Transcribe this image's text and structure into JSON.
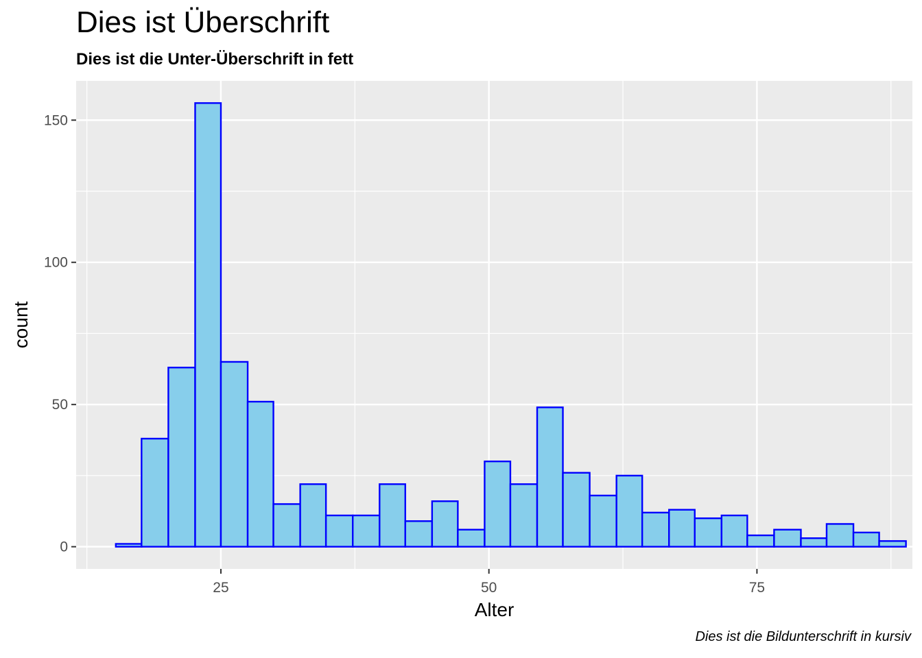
{
  "title": "Dies ist Überschrift",
  "subtitle": "Dies ist die Unter-Überschrift in fett",
  "caption": "Dies ist die Bildunterschrift in kursiv",
  "colors": {
    "panel_background": "#EBEBEB",
    "grid": "#FFFFFF",
    "bar_fill": "#87CEEB",
    "bar_outline": "#0000FF",
    "tick_text": "#4D4D4D"
  },
  "chart_data": {
    "type": "bar",
    "histogram": true,
    "xlabel": "Alter",
    "ylabel": "count",
    "xlim": [
      11.5,
      89.5
    ],
    "ylim": [
      -7.8,
      163.8
    ],
    "x_ticks": [
      25,
      50,
      75
    ],
    "x_tick_labels": [
      "25",
      "50",
      "75"
    ],
    "y_ticks": [
      0,
      50,
      100,
      150
    ],
    "y_tick_labels": [
      "0",
      "50",
      "100",
      "150"
    ],
    "grid": true,
    "bins": [
      {
        "x_start": 15.2,
        "x_end": 17.6,
        "count": 1
      },
      {
        "x_start": 17.6,
        "x_end": 20.1,
        "count": 38
      },
      {
        "x_start": 20.1,
        "x_end": 22.6,
        "count": 63
      },
      {
        "x_start": 22.6,
        "x_end": 25.0,
        "count": 156
      },
      {
        "x_start": 25.0,
        "x_end": 27.5,
        "count": 65
      },
      {
        "x_start": 27.5,
        "x_end": 29.9,
        "count": 51
      },
      {
        "x_start": 29.9,
        "x_end": 32.4,
        "count": 15
      },
      {
        "x_start": 32.4,
        "x_end": 34.8,
        "count": 22
      },
      {
        "x_start": 34.8,
        "x_end": 37.3,
        "count": 11
      },
      {
        "x_start": 37.3,
        "x_end": 39.8,
        "count": 11
      },
      {
        "x_start": 39.8,
        "x_end": 42.2,
        "count": 22
      },
      {
        "x_start": 42.2,
        "x_end": 44.7,
        "count": 9
      },
      {
        "x_start": 44.7,
        "x_end": 47.1,
        "count": 16
      },
      {
        "x_start": 47.1,
        "x_end": 49.6,
        "count": 6
      },
      {
        "x_start": 49.6,
        "x_end": 52.0,
        "count": 30
      },
      {
        "x_start": 52.0,
        "x_end": 54.5,
        "count": 22
      },
      {
        "x_start": 54.5,
        "x_end": 56.9,
        "count": 49
      },
      {
        "x_start": 56.9,
        "x_end": 59.4,
        "count": 26
      },
      {
        "x_start": 59.4,
        "x_end": 61.9,
        "count": 18
      },
      {
        "x_start": 61.9,
        "x_end": 64.3,
        "count": 25
      },
      {
        "x_start": 64.3,
        "x_end": 66.8,
        "count": 12
      },
      {
        "x_start": 66.8,
        "x_end": 69.2,
        "count": 13
      },
      {
        "x_start": 69.2,
        "x_end": 71.7,
        "count": 10
      },
      {
        "x_start": 71.7,
        "x_end": 74.1,
        "count": 11
      },
      {
        "x_start": 74.1,
        "x_end": 76.6,
        "count": 4
      },
      {
        "x_start": 76.6,
        "x_end": 79.1,
        "count": 6
      },
      {
        "x_start": 79.1,
        "x_end": 81.5,
        "count": 3
      },
      {
        "x_start": 81.5,
        "x_end": 84.0,
        "count": 8
      },
      {
        "x_start": 84.0,
        "x_end": 86.4,
        "count": 5
      },
      {
        "x_start": 86.4,
        "x_end": 88.9,
        "count": 2
      }
    ]
  }
}
